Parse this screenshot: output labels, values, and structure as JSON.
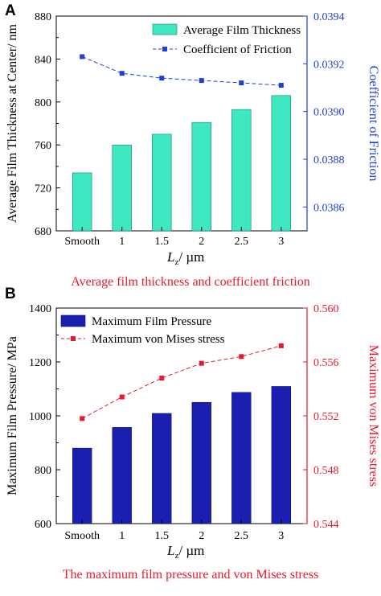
{
  "figure": {
    "caption_colors": {
      "A": "#e8192c",
      "B": "#e8192c"
    }
  },
  "chart_data": [
    {
      "panel": "A",
      "type": "bar",
      "categories": [
        "Smooth",
        "1",
        "1.5",
        "2",
        "2.5",
        "3"
      ],
      "xlabel_main": "L",
      "xlabel_sub": "z",
      "xlabel_unit": "/ µm",
      "ylabel": "Average Film Thickness at Center/ nm",
      "ylim": [
        680,
        880
      ],
      "yticks": [
        680,
        720,
        760,
        800,
        840,
        880
      ],
      "y2label": "Coefficient of Friction",
      "y2lim": [
        0.0385,
        0.0394
      ],
      "y2ticks": [
        0.0386,
        0.0388,
        0.039,
        0.0392,
        0.0394
      ],
      "y2tick_labels": [
        "0.0386",
        "0.0388",
        "0.0390",
        "0.0392",
        "0.0394"
      ],
      "caption": "Average film thickness and coefficient friction",
      "series": [
        {
          "name": "Average Film Thickness",
          "kind": "bar",
          "axis": "left",
          "color": "#3ee8c0",
          "edge": "#1a7f6a",
          "values": [
            734,
            760,
            770,
            781,
            793,
            806
          ]
        },
        {
          "name": "Coefficient of Friction",
          "kind": "line",
          "axis": "right",
          "color": "#1f3fd6",
          "values": [
            0.03923,
            0.03916,
            0.03914,
            0.03913,
            0.03912,
            0.03911
          ]
        }
      ],
      "legend_position": "top-right",
      "grid": false,
      "y2_color": "#1f3fd6"
    },
    {
      "panel": "B",
      "type": "bar",
      "categories": [
        "Smooth",
        "1",
        "1.5",
        "2",
        "2.5",
        "3"
      ],
      "xlabel_main": "L",
      "xlabel_sub": "z",
      "xlabel_unit": "/ µm",
      "ylabel": "Maximum Film Pressure/ MPa",
      "ylim": [
        600,
        1400
      ],
      "yticks": [
        600,
        800,
        1000,
        1200,
        1400
      ],
      "y2label": "Maximum von Mises stress",
      "y2lim": [
        0.544,
        0.56
      ],
      "y2ticks": [
        0.544,
        0.548,
        0.552,
        0.556,
        0.56
      ],
      "y2tick_labels": [
        "0.544",
        "0.548",
        "0.552",
        "0.556",
        "0.560"
      ],
      "caption": "The maximum film pressure and von Mises stress",
      "series": [
        {
          "name": "Maximum  Film Pressure",
          "kind": "bar",
          "axis": "left",
          "color": "#1a1fb0",
          "edge": "#0e1270",
          "values": [
            880,
            957,
            1009,
            1050,
            1087,
            1109
          ]
        },
        {
          "name": "Maximum von Mises stress",
          "kind": "line",
          "axis": "right",
          "color": "#e8192c",
          "values": [
            0.5518,
            0.5534,
            0.5548,
            0.5559,
            0.5564,
            0.5572
          ]
        }
      ],
      "legend_position": "top-left",
      "grid": false,
      "y2_color": "#e8192c"
    }
  ],
  "panel_labels": [
    "A",
    "B"
  ]
}
